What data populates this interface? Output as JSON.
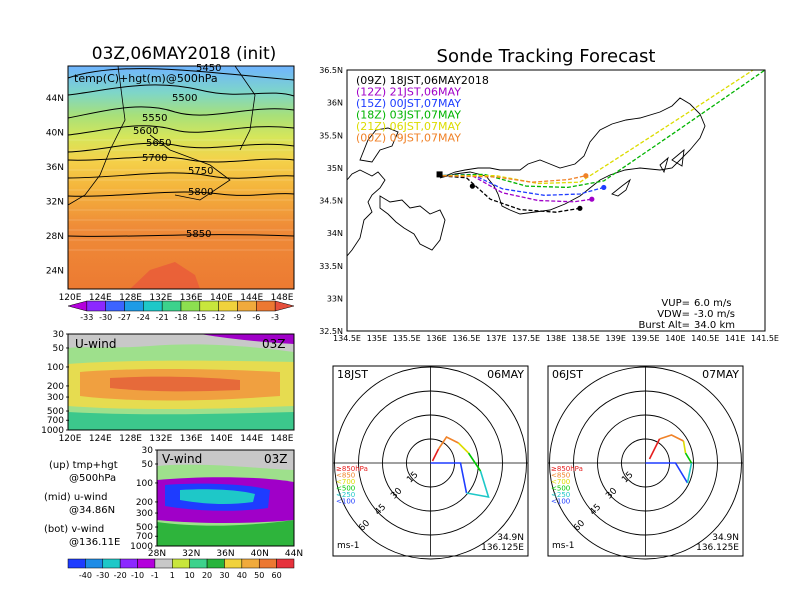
{
  "titles": {
    "main_left": "03Z,06MAY2018 (init)",
    "main_right": "Sonde Tracking Forecast"
  },
  "map500": {
    "label": "temp(C)+hgt(m)@500hPa",
    "x_ticks": [
      "120E",
      "124E",
      "128E",
      "132E",
      "136E",
      "140E",
      "144E",
      "148E"
    ],
    "y_ticks": [
      "44N",
      "40N",
      "36N",
      "32N",
      "28N",
      "24N"
    ],
    "contours": [
      "5450",
      "5500",
      "5550",
      "5600",
      "5650",
      "5700",
      "5750",
      "5800",
      "5850"
    ],
    "colorbar": [
      "-33",
      "-30",
      "-27",
      "-24",
      "-21",
      "-18",
      "-15",
      "-12",
      "-9",
      "-6",
      "-3"
    ]
  },
  "uwind": {
    "label": "U-wind",
    "time": "03Z",
    "y_ticks": [
      "30",
      "50",
      "100",
      "200",
      "300",
      "500",
      "700",
      "1000"
    ],
    "x_ticks": [
      "120E",
      "124E",
      "128E",
      "132E",
      "136E",
      "140E",
      "144E",
      "148E"
    ]
  },
  "vwind": {
    "label": "V-wind",
    "time": "03Z",
    "y_ticks": [
      "30",
      "50",
      "100",
      "200",
      "300",
      "500",
      "700",
      "1000"
    ],
    "x_ticks": [
      "28N",
      "32N",
      "36N",
      "40N",
      "44N"
    ],
    "colorbar": [
      "-40",
      "-30",
      "-20",
      "-10",
      "-1",
      "1",
      "10",
      "20",
      "30",
      "40",
      "50",
      "60"
    ]
  },
  "notes": {
    "up1": "(up) tmp+hgt",
    "up2": "@500hPa",
    "mid1": "(mid) u-wind",
    "mid2": "@34.86N",
    "bot1": "(bot) v-wind",
    "bot2": "@136.11E"
  },
  "track": {
    "x_ticks": [
      "134.5E",
      "135E",
      "135.5E",
      "136E",
      "136.5E",
      "137E",
      "137.5E",
      "138E",
      "138.5E",
      "139E",
      "139.5E",
      "140E",
      "140.5E",
      "141E",
      "141.5E"
    ],
    "y_ticks": [
      "36.5N",
      "36N",
      "35.5N",
      "35N",
      "34.5N",
      "34N",
      "33.5N",
      "33N",
      "32.5N"
    ],
    "legend": [
      {
        "text": "(09Z)  18JST,06MAY2018",
        "color": "#000000"
      },
      {
        "text": "(12Z)  21JST,06MAY",
        "color": "#a000c8"
      },
      {
        "text": "(15Z)  00JST,07MAY",
        "color": "#1e3cff"
      },
      {
        "text": "(18Z)  03JST,07MAY",
        "color": "#00b400"
      },
      {
        "text": "(21Z)  06JST,07MAY",
        "color": "#dcdc00"
      },
      {
        "text": "(00Z)  09JST,07MAY",
        "color": "#f08228"
      }
    ],
    "info": [
      {
        "label": "VUP=",
        "value": "6.0  m/s"
      },
      {
        "label": "VDW=",
        "value": "-3.0  m/s"
      },
      {
        "label": "Burst Alt=",
        "value": "34.0  km"
      }
    ]
  },
  "chart_data": [
    {
      "type": "line",
      "title": "Sonde Tracking Forecast",
      "xlim": [
        134.5,
        141.5
      ],
      "ylim": [
        32.5,
        36.5
      ],
      "series": [
        {
          "name": "(09Z) 18JST,06MAY2018",
          "x": [
            136.0,
            136.5,
            136.9,
            137.4,
            138.0,
            138.4
          ],
          "y": [
            34.88,
            34.85,
            34.52,
            34.36,
            34.32,
            34.38
          ]
        },
        {
          "name": "(12Z) 21JST,06MAY",
          "x": [
            136.0,
            136.6,
            137.1,
            137.7,
            138.3,
            138.6
          ],
          "y": [
            34.88,
            34.88,
            34.62,
            34.5,
            34.48,
            34.52
          ]
        },
        {
          "name": "(15Z) 00JST,07MAY",
          "x": [
            136.0,
            136.6,
            137.1,
            137.8,
            138.4,
            138.8
          ],
          "y": [
            34.88,
            34.9,
            34.68,
            34.58,
            34.6,
            34.7
          ]
        },
        {
          "name": "(18Z) 03JST,07MAY",
          "x": [
            136.0,
            136.8,
            137.5,
            138.2,
            138.8,
            140.0,
            141.5
          ],
          "y": [
            34.88,
            34.9,
            34.72,
            34.7,
            34.8,
            35.55,
            36.5
          ]
        },
        {
          "name": "(21Z) 06JST,07MAY",
          "x": [
            136.0,
            137.0,
            137.7,
            138.4,
            139.2,
            140.3,
            141.3
          ],
          "y": [
            34.88,
            34.88,
            34.76,
            34.78,
            35.25,
            35.9,
            36.5
          ]
        },
        {
          "name": "(00Z) 09JST,07MAY",
          "x": [
            136.0,
            137.0,
            137.6,
            138.2,
            138.5
          ],
          "y": [
            34.88,
            34.86,
            34.78,
            34.82,
            34.88
          ]
        }
      ]
    }
  ],
  "hodographs": [
    {
      "time": "18JST",
      "date": "06MAY",
      "lat": "34.9N",
      "lon": "136.125E",
      "unit": "ms-1",
      "rings": [
        "15",
        "30",
        "45",
        "60"
      ],
      "legend": [
        "≥850hPa",
        "<850",
        "<700",
        "<500",
        "<250",
        "<100"
      ],
      "legend_colors": [
        "#e61e1e",
        "#f08228",
        "#dcdc00",
        "#00c800",
        "#1ec8c8",
        "#1e3cff"
      ]
    },
    {
      "time": "06JST",
      "date": "07MAY",
      "lat": "34.9N",
      "lon": "136.125E",
      "unit": "ms-1",
      "rings": [
        "15",
        "30",
        "45",
        "60"
      ],
      "legend": [
        "≥850hPa",
        "<850",
        "<700",
        "<500",
        "<250",
        "<100"
      ],
      "legend_colors": [
        "#e61e1e",
        "#f08228",
        "#dcdc00",
        "#00c800",
        "#1ec8c8",
        "#1e3cff"
      ]
    }
  ]
}
